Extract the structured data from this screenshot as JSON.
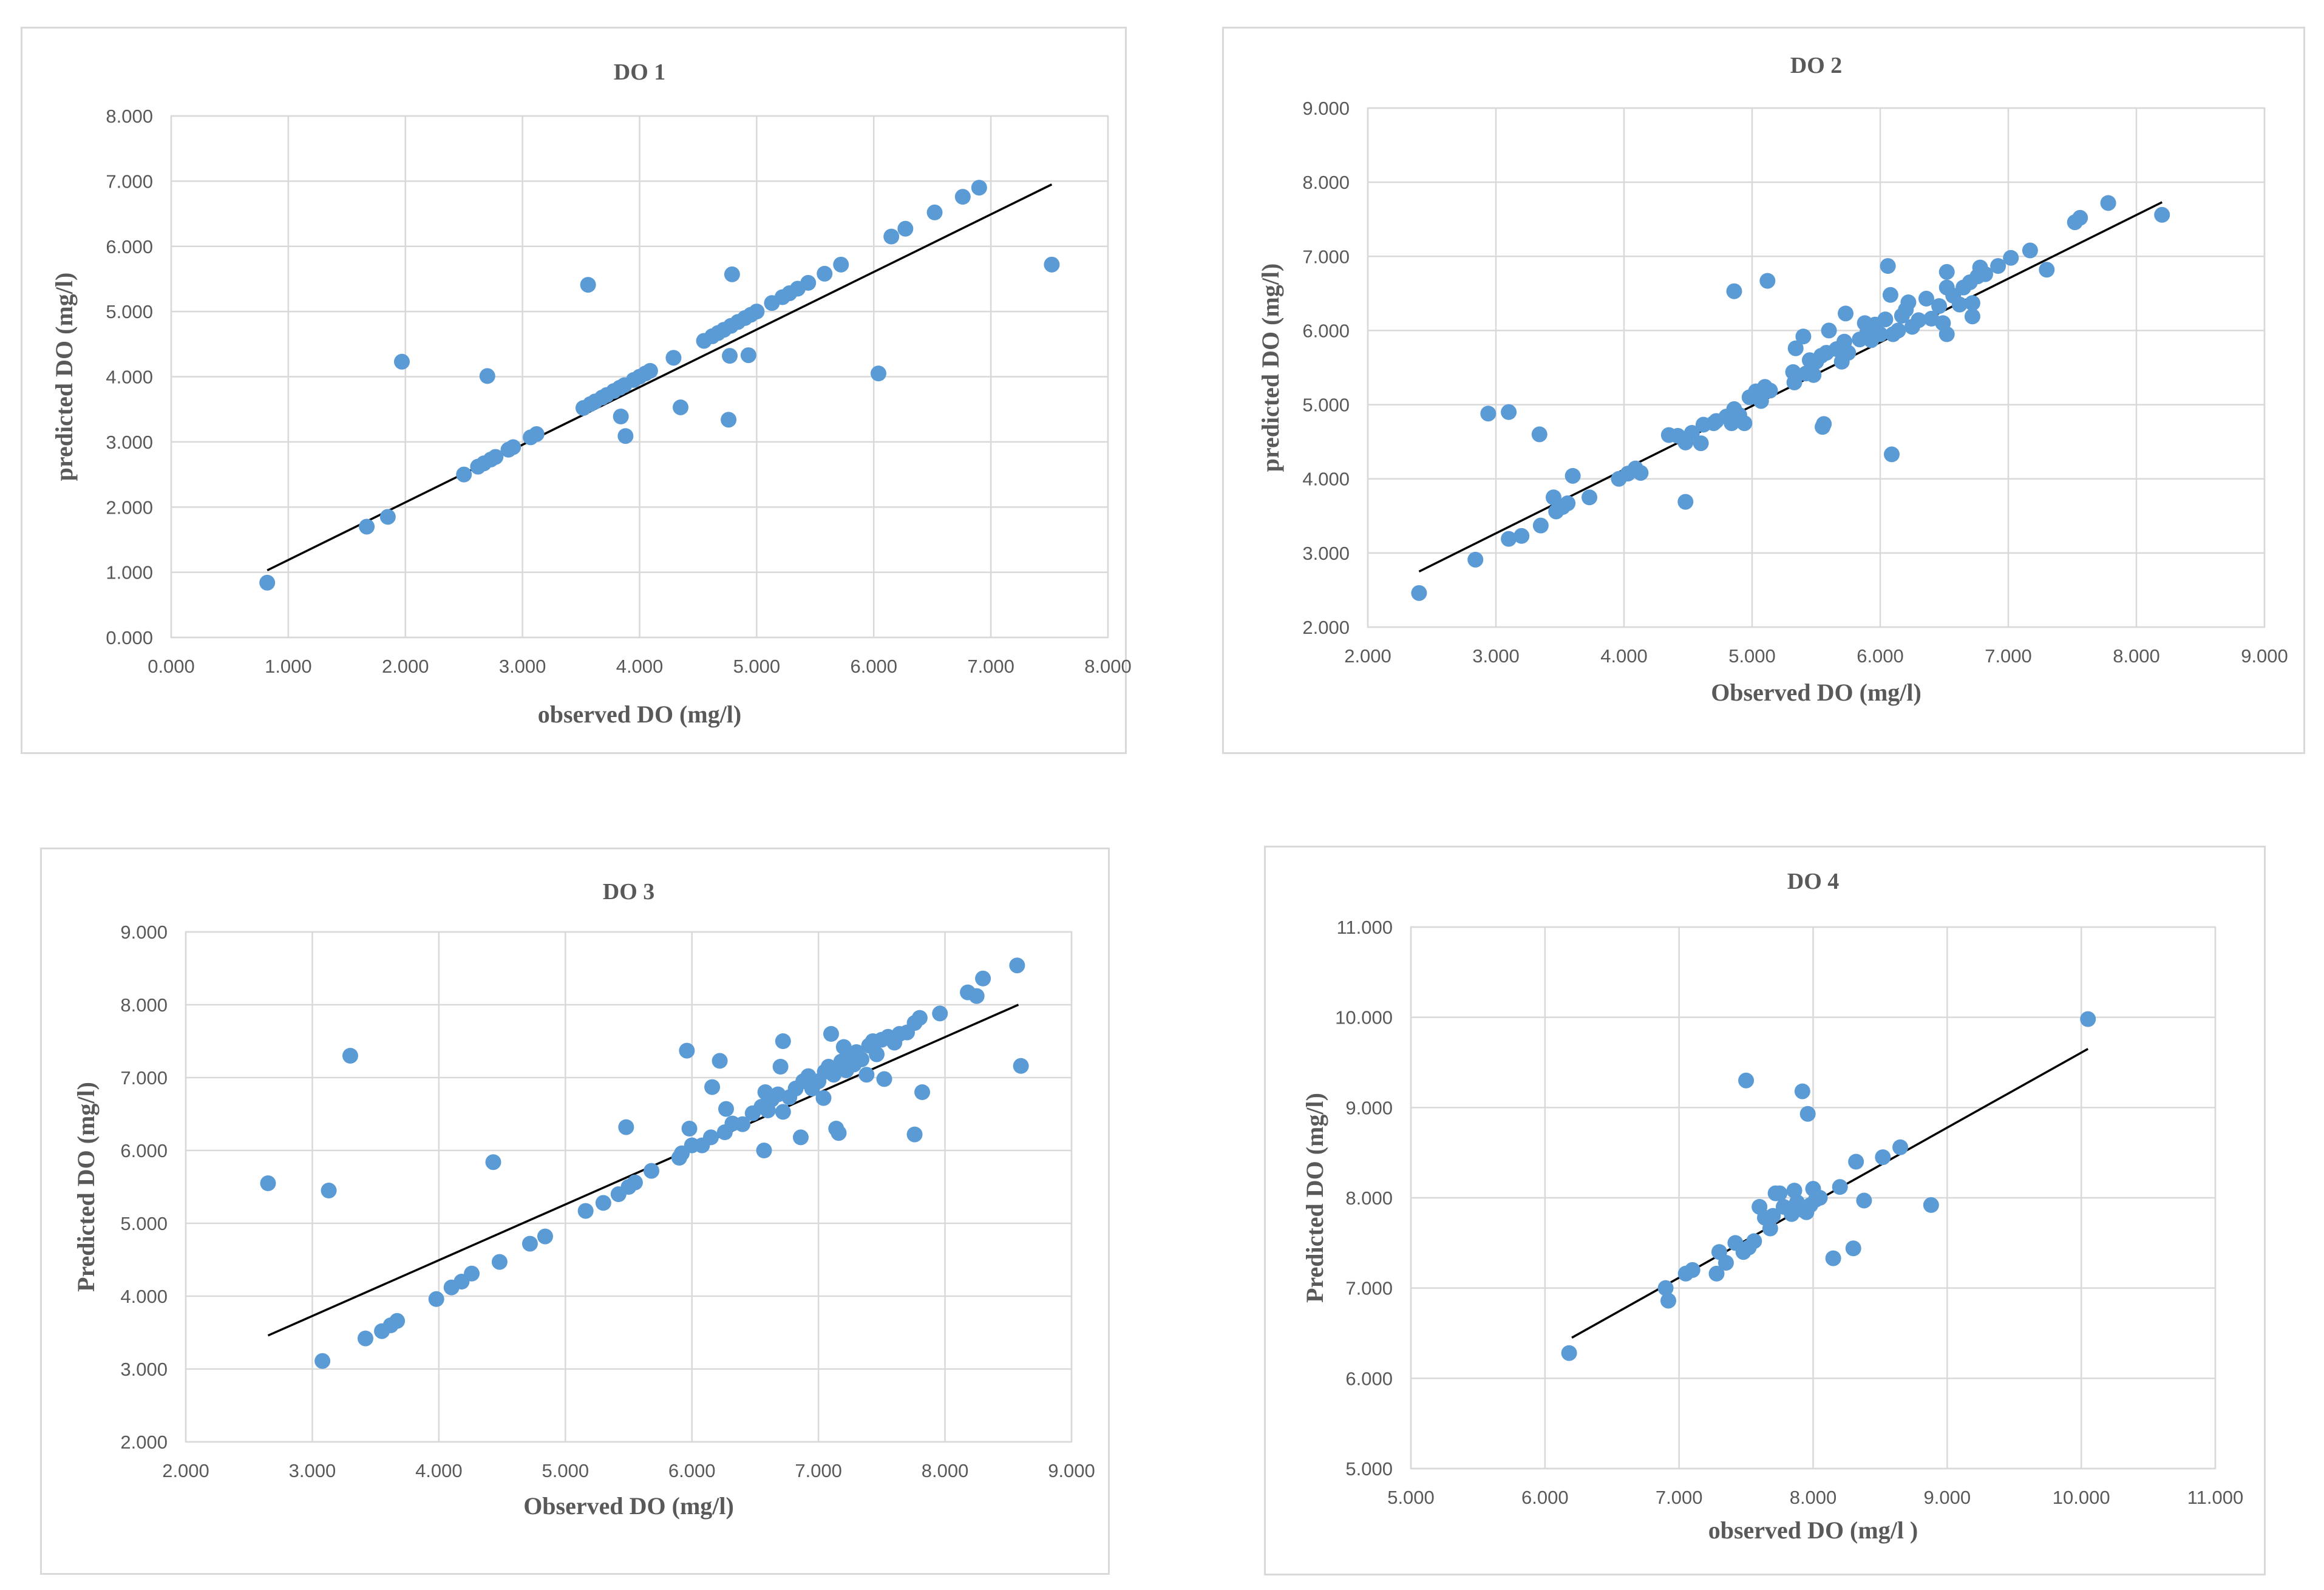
{
  "chart_data": [
    {
      "type": "scatter",
      "title": "DO 1",
      "xlabel": "observed DO (mg/l)",
      "ylabel": "predicted DO (mg/l)",
      "xlim": [
        0,
        8
      ],
      "ylim": [
        0,
        8
      ],
      "xticks": [
        "0.000",
        "1.000",
        "2.000",
        "3.000",
        "4.000",
        "5.000",
        "6.000",
        "7.000",
        "8.000"
      ],
      "yticks": [
        "0.000",
        "1.000",
        "2.000",
        "3.000",
        "4.000",
        "5.000",
        "6.000",
        "7.000",
        "8.000"
      ],
      "grid": true,
      "trendline": [
        [
          0.82,
          1.03
        ],
        [
          7.52,
          6.95
        ]
      ],
      "points": [
        [
          0.82,
          0.84
        ],
        [
          1.67,
          1.7
        ],
        [
          1.85,
          1.85
        ],
        [
          1.97,
          4.23
        ],
        [
          2.5,
          2.5
        ],
        [
          2.62,
          2.62
        ],
        [
          2.67,
          2.67
        ],
        [
          2.7,
          4.01
        ],
        [
          2.73,
          2.73
        ],
        [
          2.77,
          2.77
        ],
        [
          2.88,
          2.88
        ],
        [
          2.92,
          2.92
        ],
        [
          3.07,
          3.07
        ],
        [
          3.12,
          3.12
        ],
        [
          3.52,
          3.52
        ],
        [
          3.56,
          5.41
        ],
        [
          3.58,
          3.58
        ],
        [
          3.62,
          3.62
        ],
        [
          3.68,
          3.68
        ],
        [
          3.72,
          3.72
        ],
        [
          3.78,
          3.78
        ],
        [
          3.83,
          3.83
        ],
        [
          3.84,
          3.39
        ],
        [
          3.87,
          3.87
        ],
        [
          3.88,
          3.09
        ],
        [
          3.95,
          3.95
        ],
        [
          4.0,
          4.0
        ],
        [
          4.05,
          4.05
        ],
        [
          4.09,
          4.09
        ],
        [
          4.29,
          4.29
        ],
        [
          4.35,
          3.53
        ],
        [
          4.55,
          4.55
        ],
        [
          4.62,
          4.62
        ],
        [
          4.67,
          4.67
        ],
        [
          4.72,
          4.72
        ],
        [
          4.76,
          3.34
        ],
        [
          4.77,
          4.32
        ],
        [
          4.78,
          4.78
        ],
        [
          4.79,
          5.57
        ],
        [
          4.84,
          4.84
        ],
        [
          4.9,
          4.9
        ],
        [
          4.93,
          4.33
        ],
        [
          4.95,
          4.95
        ],
        [
          5.0,
          5.0
        ],
        [
          5.13,
          5.13
        ],
        [
          5.22,
          5.22
        ],
        [
          5.28,
          5.28
        ],
        [
          5.35,
          5.35
        ],
        [
          5.44,
          5.44
        ],
        [
          5.58,
          5.58
        ],
        [
          5.72,
          5.72
        ],
        [
          6.04,
          4.05
        ],
        [
          6.15,
          6.15
        ],
        [
          6.27,
          6.27
        ],
        [
          6.52,
          6.52
        ],
        [
          6.76,
          6.76
        ],
        [
          6.9,
          6.9
        ],
        [
          7.52,
          5.72
        ]
      ]
    },
    {
      "type": "scatter",
      "title": "DO 2",
      "xlabel": "Observed DO (mg/l)",
      "ylabel": "predicted DO (mg/l)",
      "xlim": [
        2,
        9
      ],
      "ylim": [
        2,
        9
      ],
      "xticks": [
        "2.000",
        "3.000",
        "4.000",
        "5.000",
        "6.000",
        "7.000",
        "8.000",
        "9.000"
      ],
      "yticks": [
        "2.000",
        "3.000",
        "4.000",
        "5.000",
        "6.000",
        "7.000",
        "8.000",
        "9.000"
      ],
      "grid": true,
      "trendline": [
        [
          2.4,
          2.75
        ],
        [
          8.2,
          7.73
        ]
      ],
      "points": [
        [
          2.4,
          2.46
        ],
        [
          2.84,
          2.91
        ],
        [
          2.94,
          4.88
        ],
        [
          3.1,
          4.9
        ],
        [
          3.1,
          3.19
        ],
        [
          3.2,
          3.23
        ],
        [
          3.34,
          4.6
        ],
        [
          3.35,
          3.37
        ],
        [
          3.45,
          3.75
        ],
        [
          3.47,
          3.56
        ],
        [
          3.52,
          3.62
        ],
        [
          3.56,
          3.67
        ],
        [
          3.6,
          4.04
        ],
        [
          3.73,
          3.75
        ],
        [
          3.96,
          4.0
        ],
        [
          4.03,
          4.07
        ],
        [
          4.09,
          4.14
        ],
        [
          4.13,
          4.08
        ],
        [
          4.35,
          4.59
        ],
        [
          4.42,
          4.58
        ],
        [
          4.48,
          4.49
        ],
        [
          4.48,
          3.69
        ],
        [
          4.53,
          4.62
        ],
        [
          4.6,
          4.48
        ],
        [
          4.62,
          4.73
        ],
        [
          4.7,
          4.75
        ],
        [
          4.72,
          4.78
        ],
        [
          4.8,
          4.84
        ],
        [
          4.84,
          4.75
        ],
        [
          4.86,
          4.94
        ],
        [
          4.86,
          6.53
        ],
        [
          4.9,
          4.86
        ],
        [
          4.94,
          4.75
        ],
        [
          4.98,
          5.1
        ],
        [
          5.03,
          5.18
        ],
        [
          5.07,
          5.05
        ],
        [
          5.1,
          5.24
        ],
        [
          5.12,
          6.67
        ],
        [
          5.14,
          5.19
        ],
        [
          5.32,
          5.44
        ],
        [
          5.33,
          5.3
        ],
        [
          5.34,
          5.76
        ],
        [
          5.4,
          5.92
        ],
        [
          5.42,
          5.42
        ],
        [
          5.45,
          5.6
        ],
        [
          5.48,
          5.4
        ],
        [
          5.5,
          5.58
        ],
        [
          5.54,
          5.66
        ],
        [
          5.55,
          4.7
        ],
        [
          5.56,
          4.74
        ],
        [
          5.58,
          5.7
        ],
        [
          5.6,
          6.0
        ],
        [
          5.66,
          5.75
        ],
        [
          5.7,
          5.58
        ],
        [
          5.72,
          5.85
        ],
        [
          5.73,
          6.23
        ],
        [
          5.75,
          5.7
        ],
        [
          5.84,
          5.88
        ],
        [
          5.88,
          6.1
        ],
        [
          5.9,
          5.98
        ],
        [
          5.93,
          5.87
        ],
        [
          5.96,
          6.08
        ],
        [
          6.0,
          5.95
        ],
        [
          6.04,
          6.15
        ],
        [
          6.06,
          6.87
        ],
        [
          6.08,
          6.48
        ],
        [
          6.09,
          4.33
        ],
        [
          6.1,
          5.95
        ],
        [
          6.14,
          6.0
        ],
        [
          6.17,
          6.2
        ],
        [
          6.2,
          6.28
        ],
        [
          6.22,
          6.38
        ],
        [
          6.25,
          6.05
        ],
        [
          6.3,
          6.14
        ],
        [
          6.36,
          6.43
        ],
        [
          6.4,
          6.16
        ],
        [
          6.46,
          6.33
        ],
        [
          6.49,
          6.1
        ],
        [
          6.52,
          6.58
        ],
        [
          6.52,
          6.79
        ],
        [
          6.52,
          5.95
        ],
        [
          6.57,
          6.47
        ],
        [
          6.62,
          6.35
        ],
        [
          6.65,
          6.58
        ],
        [
          6.7,
          6.65
        ],
        [
          6.72,
          6.37
        ],
        [
          6.72,
          6.19
        ],
        [
          6.76,
          6.73
        ],
        [
          6.78,
          6.85
        ],
        [
          6.82,
          6.76
        ],
        [
          6.92,
          6.87
        ],
        [
          7.02,
          6.98
        ],
        [
          7.17,
          7.08
        ],
        [
          7.3,
          6.82
        ],
        [
          7.52,
          7.46
        ],
        [
          7.56,
          7.52
        ],
        [
          7.78,
          7.72
        ],
        [
          8.2,
          7.56
        ]
      ]
    },
    {
      "type": "scatter",
      "title": "DO 3",
      "xlabel": "Observed DO (mg/l)",
      "ylabel": "Predicted DO (mg/l)",
      "xlim": [
        2,
        9
      ],
      "ylim": [
        2,
        9
      ],
      "xticks": [
        "2.000",
        "3.000",
        "4.000",
        "5.000",
        "6.000",
        "7.000",
        "8.000",
        "9.000"
      ],
      "yticks": [
        "2.000",
        "3.000",
        "4.000",
        "5.000",
        "6.000",
        "7.000",
        "8.000",
        "9.000"
      ],
      "grid": true,
      "trendline": [
        [
          2.65,
          3.46
        ],
        [
          8.58,
          8.0
        ]
      ],
      "points": [
        [
          2.65,
          5.55
        ],
        [
          3.08,
          3.11
        ],
        [
          3.13,
          5.45
        ],
        [
          3.3,
          7.3
        ],
        [
          3.42,
          3.42
        ],
        [
          3.55,
          3.52
        ],
        [
          3.62,
          3.6
        ],
        [
          3.67,
          3.66
        ],
        [
          3.98,
          3.96
        ],
        [
          4.1,
          4.12
        ],
        [
          4.18,
          4.2
        ],
        [
          4.26,
          4.31
        ],
        [
          4.43,
          5.84
        ],
        [
          4.48,
          4.47
        ],
        [
          4.72,
          4.72
        ],
        [
          4.84,
          4.82
        ],
        [
          5.16,
          5.17
        ],
        [
          5.3,
          5.28
        ],
        [
          5.42,
          5.4
        ],
        [
          5.48,
          6.32
        ],
        [
          5.5,
          5.5
        ],
        [
          5.55,
          5.56
        ],
        [
          5.68,
          5.72
        ],
        [
          5.9,
          5.9
        ],
        [
          5.92,
          5.96
        ],
        [
          5.96,
          7.37
        ],
        [
          5.98,
          6.3
        ],
        [
          6.0,
          6.07
        ],
        [
          6.08,
          6.07
        ],
        [
          6.15,
          6.18
        ],
        [
          6.16,
          6.87
        ],
        [
          6.22,
          7.23
        ],
        [
          6.26,
          6.25
        ],
        [
          6.27,
          6.57
        ],
        [
          6.32,
          6.37
        ],
        [
          6.4,
          6.36
        ],
        [
          6.48,
          6.51
        ],
        [
          6.55,
          6.6
        ],
        [
          6.57,
          6.0
        ],
        [
          6.58,
          6.8
        ],
        [
          6.6,
          6.55
        ],
        [
          6.63,
          6.7
        ],
        [
          6.68,
          6.77
        ],
        [
          6.7,
          7.15
        ],
        [
          6.72,
          7.5
        ],
        [
          6.72,
          6.53
        ],
        [
          6.77,
          6.73
        ],
        [
          6.82,
          6.85
        ],
        [
          6.86,
          6.18
        ],
        [
          6.88,
          6.95
        ],
        [
          6.92,
          7.02
        ],
        [
          6.95,
          6.85
        ],
        [
          7.0,
          6.95
        ],
        [
          7.04,
          6.72
        ],
        [
          7.05,
          7.08
        ],
        [
          7.08,
          7.15
        ],
        [
          7.1,
          7.6
        ],
        [
          7.12,
          7.04
        ],
        [
          7.14,
          6.3
        ],
        [
          7.16,
          6.24
        ],
        [
          7.18,
          7.22
        ],
        [
          7.2,
          7.42
        ],
        [
          7.22,
          7.1
        ],
        [
          7.24,
          7.3
        ],
        [
          7.28,
          7.18
        ],
        [
          7.3,
          7.35
        ],
        [
          7.34,
          7.25
        ],
        [
          7.38,
          7.04
        ],
        [
          7.4,
          7.44
        ],
        [
          7.43,
          7.5
        ],
        [
          7.46,
          7.32
        ],
        [
          7.5,
          7.52
        ],
        [
          7.52,
          6.98
        ],
        [
          7.55,
          7.56
        ],
        [
          7.6,
          7.48
        ],
        [
          7.64,
          7.6
        ],
        [
          7.7,
          7.62
        ],
        [
          7.76,
          7.75
        ],
        [
          7.76,
          6.22
        ],
        [
          7.8,
          7.82
        ],
        [
          7.82,
          6.8
        ],
        [
          7.96,
          7.88
        ],
        [
          8.18,
          8.17
        ],
        [
          8.25,
          8.12
        ],
        [
          8.3,
          8.36
        ],
        [
          8.57,
          8.54
        ],
        [
          8.6,
          7.16
        ]
      ]
    },
    {
      "type": "scatter",
      "title": "DO 4",
      "xlabel": "observed DO (mg/l )",
      "ylabel": "Predicted DO (mg/l)",
      "xlim": [
        5,
        11
      ],
      "ylim": [
        5,
        11
      ],
      "xticks": [
        "5.000",
        "6.000",
        "7.000",
        "8.000",
        "9.000",
        "10.000",
        "11.000"
      ],
      "yticks": [
        "5.000",
        "6.000",
        "7.000",
        "8.000",
        "9.000",
        "10.000",
        "11.000"
      ],
      "grid": true,
      "trendline": [
        [
          6.2,
          6.45
        ],
        [
          10.05,
          9.65
        ]
      ],
      "points": [
        [
          6.18,
          6.28
        ],
        [
          6.9,
          7.0
        ],
        [
          6.92,
          6.86
        ],
        [
          7.05,
          7.16
        ],
        [
          7.1,
          7.2
        ],
        [
          7.28,
          7.16
        ],
        [
          7.3,
          7.4
        ],
        [
          7.35,
          7.28
        ],
        [
          7.42,
          7.5
        ],
        [
          7.48,
          7.4
        ],
        [
          7.5,
          9.3
        ],
        [
          7.52,
          7.45
        ],
        [
          7.56,
          7.52
        ],
        [
          7.6,
          7.9
        ],
        [
          7.64,
          7.78
        ],
        [
          7.68,
          7.66
        ],
        [
          7.7,
          7.8
        ],
        [
          7.72,
          8.05
        ],
        [
          7.75,
          8.05
        ],
        [
          7.78,
          7.9
        ],
        [
          7.82,
          7.88
        ],
        [
          7.84,
          7.82
        ],
        [
          7.86,
          8.08
        ],
        [
          7.88,
          7.95
        ],
        [
          7.92,
          9.18
        ],
        [
          7.93,
          7.86
        ],
        [
          7.95,
          7.84
        ],
        [
          7.96,
          8.93
        ],
        [
          7.98,
          7.92
        ],
        [
          8.0,
          8.1
        ],
        [
          8.02,
          7.98
        ],
        [
          8.05,
          8.0
        ],
        [
          8.15,
          7.33
        ],
        [
          8.2,
          8.12
        ],
        [
          8.3,
          7.44
        ],
        [
          8.32,
          8.4
        ],
        [
          8.38,
          7.97
        ],
        [
          8.52,
          8.45
        ],
        [
          8.65,
          8.56
        ],
        [
          8.88,
          7.92
        ],
        [
          10.05,
          9.98
        ]
      ]
    }
  ]
}
